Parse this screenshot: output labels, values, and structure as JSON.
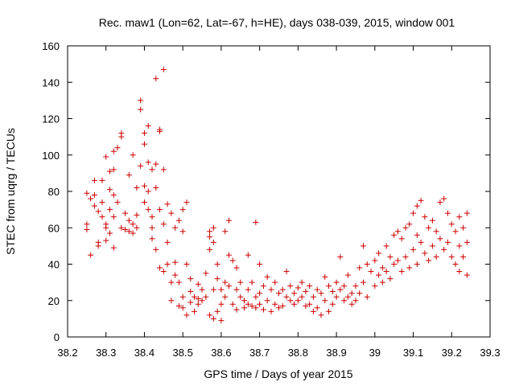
{
  "chart_data": {
    "type": "scatter",
    "title": "Rec. maw1 (Lon=62, Lat=-67, h=HE), days 038-039, 2015, window 001",
    "xlabel": "GPS time / Days of year 2015",
    "ylabel": "STEC from uqrg / TECUs",
    "xlim": [
      38.2,
      39.3
    ],
    "ylim": [
      0,
      160
    ],
    "xticks": [
      "38.2",
      "38.3",
      "38.4",
      "38.5",
      "38.6",
      "38.7",
      "38.8",
      "38.9",
      "39",
      "39.1",
      "39.2",
      "39.3"
    ],
    "yticks": [
      "0",
      "20",
      "40",
      "60",
      "80",
      "100",
      "120",
      "140",
      "160"
    ],
    "grid": false,
    "marker": "+",
    "marker_color": "#cc0000",
    "points": [
      [
        38.25,
        79
      ],
      [
        38.25,
        62
      ],
      [
        38.25,
        59
      ],
      [
        38.26,
        45
      ],
      [
        38.26,
        76
      ],
      [
        38.27,
        78
      ],
      [
        38.27,
        72
      ],
      [
        38.27,
        86
      ],
      [
        38.28,
        69
      ],
      [
        38.28,
        52
      ],
      [
        38.28,
        50
      ],
      [
        38.29,
        86
      ],
      [
        38.29,
        74
      ],
      [
        38.29,
        66
      ],
      [
        38.3,
        62
      ],
      [
        38.3,
        53
      ],
      [
        38.3,
        60
      ],
      [
        38.3,
        99
      ],
      [
        38.31,
        91
      ],
      [
        38.31,
        81
      ],
      [
        38.31,
        70
      ],
      [
        38.31,
        57
      ],
      [
        38.32,
        102
      ],
      [
        38.32,
        92
      ],
      [
        38.32,
        78
      ],
      [
        38.32,
        66
      ],
      [
        38.32,
        49
      ],
      [
        38.33,
        104
      ],
      [
        38.33,
        74
      ],
      [
        38.34,
        110
      ],
      [
        38.34,
        112
      ],
      [
        38.34,
        60
      ],
      [
        38.35,
        68
      ],
      [
        38.35,
        59
      ],
      [
        38.36,
        89
      ],
      [
        38.36,
        64
      ],
      [
        38.36,
        58
      ],
      [
        38.37,
        100
      ],
      [
        38.37,
        62
      ],
      [
        38.37,
        57
      ],
      [
        38.38,
        82
      ],
      [
        38.38,
        67
      ],
      [
        38.38,
        60
      ],
      [
        38.39,
        130
      ],
      [
        38.39,
        125
      ],
      [
        38.39,
        94
      ],
      [
        38.4,
        112
      ],
      [
        38.4,
        106
      ],
      [
        38.4,
        83
      ],
      [
        38.4,
        74
      ],
      [
        38.41,
        116
      ],
      [
        38.41,
        96
      ],
      [
        38.41,
        80
      ],
      [
        38.41,
        70
      ],
      [
        38.42,
        92
      ],
      [
        38.42,
        66
      ],
      [
        38.42,
        60
      ],
      [
        38.42,
        54
      ],
      [
        38.43,
        142
      ],
      [
        38.43,
        82
      ],
      [
        38.43,
        95
      ],
      [
        38.43,
        48
      ],
      [
        38.44,
        114
      ],
      [
        38.44,
        113
      ],
      [
        38.44,
        70
      ],
      [
        38.44,
        38
      ],
      [
        38.45,
        147
      ],
      [
        38.45,
        92
      ],
      [
        38.45,
        62
      ],
      [
        38.45,
        36
      ],
      [
        38.46,
        73
      ],
      [
        38.46,
        52
      ],
      [
        38.46,
        40
      ],
      [
        38.47,
        68
      ],
      [
        38.47,
        30
      ],
      [
        38.47,
        20
      ],
      [
        38.48,
        60
      ],
      [
        38.48,
        41
      ],
      [
        38.48,
        34
      ],
      [
        38.49,
        64
      ],
      [
        38.49,
        30
      ],
      [
        38.49,
        17
      ],
      [
        38.5,
        70
      ],
      [
        38.5,
        58
      ],
      [
        38.5,
        22
      ],
      [
        38.5,
        16
      ],
      [
        38.51,
        74
      ],
      [
        38.51,
        40
      ],
      [
        38.51,
        12
      ],
      [
        38.52,
        32
      ],
      [
        38.52,
        25
      ],
      [
        38.52,
        19
      ],
      [
        38.53,
        22
      ],
      [
        38.53,
        14
      ],
      [
        38.54,
        29
      ],
      [
        38.54,
        21
      ],
      [
        38.54,
        18
      ],
      [
        38.55,
        26
      ],
      [
        38.55,
        20
      ],
      [
        38.56,
        35
      ],
      [
        38.56,
        22
      ],
      [
        38.57,
        58
      ],
      [
        38.57,
        55
      ],
      [
        38.57,
        48
      ],
      [
        38.57,
        12
      ],
      [
        38.58,
        60
      ],
      [
        38.58,
        52
      ],
      [
        38.58,
        26
      ],
      [
        38.58,
        10
      ],
      [
        38.59,
        40
      ],
      [
        38.59,
        32
      ],
      [
        38.59,
        14
      ],
      [
        38.6,
        26
      ],
      [
        38.6,
        18
      ],
      [
        38.6,
        9
      ],
      [
        38.61,
        58
      ],
      [
        38.61,
        30
      ],
      [
        38.61,
        22
      ],
      [
        38.62,
        64
      ],
      [
        38.62,
        45
      ],
      [
        38.62,
        28
      ],
      [
        38.63,
        42
      ],
      [
        38.63,
        18
      ],
      [
        38.64,
        38
      ],
      [
        38.64,
        26
      ],
      [
        38.64,
        15
      ],
      [
        38.65,
        30
      ],
      [
        38.65,
        22
      ],
      [
        38.66,
        20
      ],
      [
        38.66,
        16
      ],
      [
        38.67,
        45
      ],
      [
        38.67,
        26
      ],
      [
        38.67,
        18
      ],
      [
        38.68,
        30
      ],
      [
        38.68,
        17
      ],
      [
        38.69,
        63
      ],
      [
        38.69,
        22
      ],
      [
        38.69,
        16
      ],
      [
        38.7,
        40
      ],
      [
        38.7,
        24
      ],
      [
        38.7,
        18
      ],
      [
        38.71,
        28
      ],
      [
        38.71,
        15
      ],
      [
        38.72,
        33
      ],
      [
        38.72,
        20
      ],
      [
        38.73,
        26
      ],
      [
        38.73,
        14
      ],
      [
        38.74,
        30
      ],
      [
        38.74,
        18
      ],
      [
        38.75,
        24
      ],
      [
        38.75,
        16
      ],
      [
        38.76,
        26
      ],
      [
        38.76,
        17
      ],
      [
        38.77,
        36
      ],
      [
        38.77,
        22
      ],
      [
        38.78,
        28
      ],
      [
        38.78,
        20
      ],
      [
        38.79,
        24
      ],
      [
        38.79,
        18
      ],
      [
        38.8,
        27
      ],
      [
        38.8,
        20
      ],
      [
        38.81,
        30
      ],
      [
        38.81,
        22
      ],
      [
        38.82,
        25
      ],
      [
        38.82,
        17
      ],
      [
        38.83,
        28
      ],
      [
        38.83,
        18
      ],
      [
        38.84,
        22
      ],
      [
        38.84,
        14
      ],
      [
        38.85,
        26
      ],
      [
        38.85,
        16
      ],
      [
        38.86,
        24
      ],
      [
        38.86,
        12
      ],
      [
        38.87,
        33
      ],
      [
        38.87,
        20
      ],
      [
        38.88,
        28
      ],
      [
        38.88,
        14
      ],
      [
        38.89,
        25
      ],
      [
        38.89,
        18
      ],
      [
        38.9,
        30
      ],
      [
        38.9,
        22
      ],
      [
        38.91,
        44
      ],
      [
        38.91,
        26
      ],
      [
        38.92,
        28
      ],
      [
        38.92,
        20
      ],
      [
        38.93,
        34
      ],
      [
        38.93,
        22
      ],
      [
        38.94,
        24
      ],
      [
        38.94,
        18
      ],
      [
        38.95,
        28
      ],
      [
        38.95,
        20
      ],
      [
        38.96,
        38
      ],
      [
        38.96,
        24
      ],
      [
        38.97,
        50
      ],
      [
        38.97,
        30
      ],
      [
        38.98,
        40
      ],
      [
        38.98,
        22
      ],
      [
        38.99,
        36
      ],
      [
        39.0,
        42
      ],
      [
        39.0,
        28
      ],
      [
        39.01,
        46
      ],
      [
        39.01,
        34
      ],
      [
        39.02,
        38
      ],
      [
        39.02,
        30
      ],
      [
        39.03,
        50
      ],
      [
        39.03,
        36
      ],
      [
        39.04,
        44
      ],
      [
        39.04,
        32
      ],
      [
        39.05,
        56
      ],
      [
        39.05,
        40
      ],
      [
        39.06,
        58
      ],
      [
        39.06,
        42
      ],
      [
        39.07,
        54
      ],
      [
        39.07,
        36
      ],
      [
        39.08,
        60
      ],
      [
        39.08,
        44
      ],
      [
        39.09,
        62
      ],
      [
        39.09,
        38
      ],
      [
        39.1,
        68
      ],
      [
        39.1,
        48
      ],
      [
        39.11,
        72
      ],
      [
        39.11,
        56
      ],
      [
        39.11,
        40
      ],
      [
        39.12,
        75
      ],
      [
        39.12,
        52
      ],
      [
        39.13,
        66
      ],
      [
        39.13,
        46
      ],
      [
        39.14,
        60
      ],
      [
        39.14,
        42
      ],
      [
        39.15,
        64
      ],
      [
        39.15,
        50
      ],
      [
        39.16,
        58
      ],
      [
        39.16,
        44
      ],
      [
        39.17,
        74
      ],
      [
        39.17,
        54
      ],
      [
        39.18,
        76
      ],
      [
        39.18,
        48
      ],
      [
        39.19,
        68
      ],
      [
        39.19,
        52
      ],
      [
        39.2,
        62
      ],
      [
        39.2,
        44
      ],
      [
        39.21,
        58
      ],
      [
        39.21,
        40
      ],
      [
        39.22,
        66
      ],
      [
        39.22,
        50
      ],
      [
        39.22,
        36
      ],
      [
        39.23,
        60
      ],
      [
        39.23,
        44
      ],
      [
        39.24,
        68
      ],
      [
        39.24,
        52
      ],
      [
        39.24,
        34
      ]
    ]
  }
}
